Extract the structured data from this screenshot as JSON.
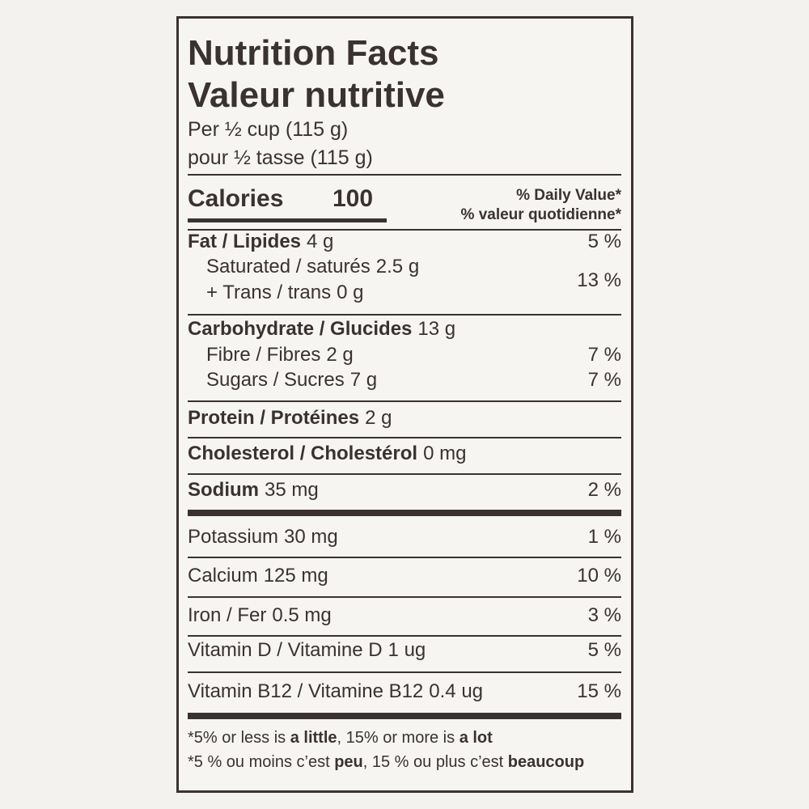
{
  "header": {
    "title_en": "Nutrition Facts",
    "title_fr": "Valeur nutritive",
    "serving_en": "Per ½ cup (115 g)",
    "serving_fr": "pour ½ tasse (115 g)"
  },
  "calories": {
    "label": "Calories",
    "value": 100
  },
  "daily_value_header": [
    "% Daily Value*",
    "% valeur quotidienne*"
  ],
  "rows": [
    {
      "name": "Fat / Lipides",
      "amount": "4 g",
      "dv": "5 %"
    },
    {
      "name": "Saturated / saturés",
      "amount": "2.5 g"
    },
    {
      "name": "+ Trans / trans",
      "amount": "0 g",
      "dv": "13 %"
    },
    {
      "name": "Carbohydrate / Glucides",
      "amount": "13 g"
    },
    {
      "name": "Fibre / Fibres",
      "amount": "2 g",
      "dv": "7 %"
    },
    {
      "name": "Sugars / Sucres",
      "amount": "7 g",
      "dv": "7 %"
    },
    {
      "name": "Protein / Protéines",
      "amount": "2 g"
    },
    {
      "name": "Cholesterol / Cholestérol",
      "amount": "0 mg"
    },
    {
      "name": "Sodium",
      "amount": "35 mg",
      "dv": "2 %"
    },
    {
      "name": "Potassium",
      "amount": "30 mg",
      "dv": "1 %"
    },
    {
      "name": "Calcium",
      "amount": "125 mg",
      "dv": "10 %"
    },
    {
      "name": "Iron / Fer",
      "amount": "0.5 mg",
      "dv": "3 %"
    },
    {
      "name": "Vitamin D / Vitamine D",
      "amount": "1 ug",
      "dv": "5 %"
    },
    {
      "name": "Vitamin B12 / Vitamine B12",
      "amount": "0.4 ug",
      "dv": "15 %"
    }
  ],
  "footnote": [
    [
      "*5% or less is ",
      "a little",
      ", 15% or more is ",
      "a lot"
    ],
    [
      "*5 % ou moins c’est ",
      "peu",
      ", 15 % ou plus c’est ",
      "beaucoup"
    ]
  ]
}
